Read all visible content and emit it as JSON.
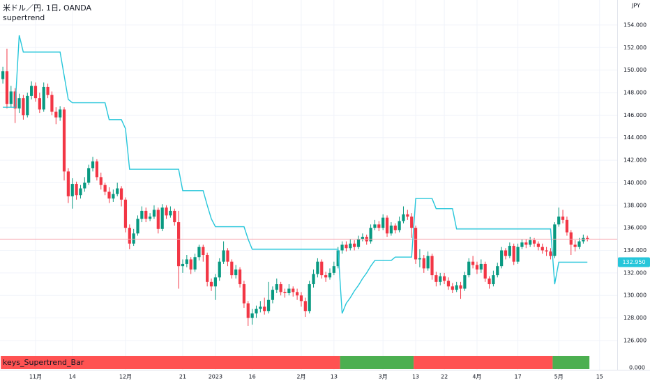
{
  "chart_data": {
    "type": "candlestick",
    "title": "米ドル／円, 1日, OANDA",
    "currency": "JPY",
    "up_color": "#089981",
    "down_color": "#f23645",
    "open": [
      149.2,
      149.9,
      147.0,
      148.1,
      146.6,
      147.5,
      146.0,
      147.7,
      148.6,
      147.5,
      146.5,
      148.5,
      147.8,
      146.3,
      145.8,
      146.5,
      141.0,
      138.8,
      139.9,
      138.9,
      139.5,
      140.0,
      141.3,
      141.9,
      140.5,
      139.8,
      139.2,
      138.6,
      139.0,
      139.5,
      138.5,
      136.0,
      134.6,
      135.5,
      136.8,
      137.5,
      136.8,
      137.0,
      137.6,
      135.9,
      137.8,
      137.1,
      137.5,
      136.5,
      132.6,
      132.8,
      133.2,
      132.3,
      133.4,
      134.3,
      133.6,
      131.2,
      130.8,
      131.6,
      133.0,
      134.0,
      133.0,
      131.8,
      132.3,
      131.0,
      129.3,
      128.0,
      128.4,
      128.8,
      129.0,
      128.6,
      129.6,
      130.5,
      131.0,
      130.3,
      130.2,
      130.6,
      130.3,
      130.0,
      129.5,
      128.6,
      131.0,
      131.9,
      133.0,
      131.8,
      131.6,
      132.0,
      132.6,
      134.0,
      134.5,
      134.2,
      134.6,
      134.3,
      135.0,
      135.2,
      134.8,
      136.0,
      136.3,
      136.0,
      136.9,
      135.5,
      136.2,
      135.8,
      136.6,
      137.2,
      137.0,
      136.0,
      133.2,
      133.3,
      132.4,
      133.5,
      131.8,
      131.2,
      131.7,
      131.3,
      130.8,
      130.5,
      130.9,
      130.6,
      131.8,
      133.0,
      132.7,
      132.3,
      132.8,
      131.5,
      131.0,
      131.8,
      132.6,
      134.0,
      133.5,
      134.4,
      133.0,
      134.3,
      134.7,
      134.5,
      134.9,
      134.6,
      134.3,
      134.0,
      133.9,
      133.5,
      136.3,
      137.0,
      136.7,
      135.6,
      134.5,
      134.3,
      134.8,
      135.1
    ],
    "high": [
      150.3,
      151.9,
      148.6,
      148.4,
      147.9,
      147.8,
      148.0,
      149.0,
      148.9,
      148.0,
      148.9,
      148.8,
      148.1,
      146.7,
      146.8,
      146.7,
      141.3,
      140.4,
      140.1,
      139.8,
      140.5,
      141.6,
      142.3,
      142.1,
      140.9,
      140.0,
      139.6,
      139.4,
      140.0,
      139.7,
      138.7,
      136.3,
      135.9,
      137.1,
      137.9,
      137.8,
      137.3,
      138.0,
      137.8,
      138.1,
      138.0,
      137.9,
      137.7,
      137.5,
      133.2,
      133.6,
      133.4,
      133.7,
      134.5,
      134.5,
      133.8,
      131.5,
      131.9,
      133.3,
      134.8,
      134.2,
      133.2,
      132.7,
      132.5,
      131.3,
      129.5,
      128.8,
      129.1,
      129.5,
      129.8,
      131.2,
      130.8,
      131.5,
      131.2,
      130.6,
      131.0,
      130.8,
      130.6,
      130.3,
      129.8,
      131.3,
      132.3,
      133.3,
      133.2,
      132.1,
      132.4,
      133.0,
      134.3,
      134.8,
      134.8,
      135.0,
      134.9,
      135.3,
      135.5,
      135.4,
      136.3,
      136.7,
      136.6,
      137.2,
      137.1,
      136.5,
      136.4,
      137.0,
      137.9,
      137.6,
      137.3,
      136.2,
      134.1,
      133.6,
      133.9,
      133.7,
      132.1,
      132.0,
      132.0,
      131.6,
      131.1,
      131.2,
      131.2,
      132.1,
      133.3,
      133.5,
      133.0,
      133.2,
      133.0,
      131.7,
      132.2,
      132.9,
      134.3,
      134.2,
      134.7,
      134.6,
      134.6,
      135.0,
      135.0,
      135.2,
      135.1,
      134.8,
      134.6,
      134.3,
      134.2,
      136.5,
      137.8,
      137.6,
      137.0,
      135.8,
      134.9,
      135.1,
      135.4,
      135.3
    ],
    "low": [
      148.8,
      146.6,
      146.7,
      145.3,
      146.2,
      145.6,
      145.8,
      147.4,
      147.2,
      146.2,
      146.3,
      147.5,
      146.0,
      145.2,
      145.5,
      140.2,
      138.2,
      137.7,
      138.5,
      138.6,
      139.2,
      139.8,
      141.0,
      140.2,
      139.4,
      138.9,
      138.2,
      138.3,
      138.8,
      137.9,
      135.6,
      134.1,
      134.4,
      135.3,
      136.5,
      136.5,
      136.6,
      136.8,
      135.5,
      135.7,
      136.8,
      136.9,
      136.2,
      130.6,
      132.0,
      132.5,
      131.9,
      132.1,
      133.1,
      133.0,
      130.8,
      130.4,
      129.6,
      131.3,
      132.8,
      132.6,
      131.5,
      131.5,
      130.7,
      128.9,
      127.3,
      127.4,
      128.0,
      128.5,
      128.3,
      128.4,
      129.3,
      130.2,
      130.0,
      129.8,
      130.0,
      129.9,
      129.6,
      129.0,
      128.1,
      128.4,
      130.7,
      131.6,
      131.5,
      131.2,
      131.4,
      131.8,
      132.4,
      133.7,
      133.9,
      134.0,
      134.0,
      134.1,
      134.8,
      134.5,
      134.6,
      135.8,
      135.7,
      135.8,
      135.2,
      135.3,
      135.5,
      135.6,
      136.4,
      136.7,
      135.1,
      132.8,
      132.5,
      132.0,
      132.2,
      131.4,
      130.8,
      130.9,
      131.0,
      130.5,
      130.2,
      130.3,
      129.7,
      130.4,
      131.6,
      132.4,
      131.9,
      132.0,
      131.2,
      130.6,
      130.8,
      131.6,
      132.4,
      133.2,
      133.3,
      132.7,
      132.8,
      134.1,
      134.2,
      134.3,
      134.3,
      134.0,
      133.7,
      133.5,
      133.2,
      133.3,
      136.1,
      136.4,
      135.3,
      133.6,
      133.9,
      134.1,
      134.6,
      134.8
    ],
    "close": [
      149.9,
      147.0,
      148.1,
      146.6,
      147.5,
      146.0,
      147.7,
      148.6,
      147.5,
      146.5,
      148.5,
      147.8,
      146.3,
      145.8,
      146.5,
      141.0,
      138.8,
      139.9,
      138.9,
      139.5,
      140.0,
      141.3,
      141.9,
      140.5,
      139.8,
      139.2,
      138.6,
      139.0,
      139.5,
      138.5,
      136.0,
      134.6,
      135.5,
      136.8,
      137.5,
      136.8,
      137.0,
      137.6,
      135.9,
      137.8,
      137.1,
      137.5,
      136.5,
      132.6,
      132.8,
      133.2,
      132.3,
      133.4,
      134.3,
      133.6,
      131.2,
      130.8,
      131.6,
      133.0,
      134.0,
      133.0,
      131.8,
      132.3,
      131.0,
      129.3,
      128.0,
      128.4,
      128.8,
      129.0,
      128.6,
      129.6,
      130.5,
      131.0,
      130.3,
      130.2,
      130.6,
      130.3,
      130.0,
      129.5,
      128.6,
      131.0,
      131.9,
      133.0,
      131.8,
      131.6,
      132.0,
      132.6,
      134.0,
      134.5,
      134.2,
      134.6,
      134.3,
      135.0,
      135.2,
      134.8,
      136.0,
      136.3,
      136.0,
      136.9,
      135.5,
      136.2,
      135.8,
      136.6,
      137.2,
      137.0,
      136.0,
      133.2,
      133.3,
      132.4,
      133.5,
      131.8,
      131.2,
      131.7,
      131.3,
      130.8,
      130.5,
      130.9,
      130.6,
      131.8,
      133.0,
      132.7,
      132.3,
      132.8,
      131.5,
      131.0,
      131.8,
      132.6,
      134.0,
      133.5,
      134.4,
      133.0,
      134.3,
      134.7,
      134.5,
      134.9,
      134.6,
      134.3,
      134.0,
      133.9,
      133.5,
      136.3,
      137.0,
      136.7,
      135.6,
      134.5,
      134.3,
      134.8,
      135.1,
      135.0
    ],
    "overlay": {
      "name": "supertrend",
      "color": "#26c6da",
      "values": [
        146.7,
        146.7,
        146.7,
        146.7,
        153.1,
        151.6,
        151.6,
        151.6,
        151.6,
        151.6,
        151.6,
        151.6,
        151.6,
        151.6,
        151.6,
        149.5,
        147.4,
        147.1,
        147.1,
        147.1,
        147.1,
        147.1,
        147.1,
        147.1,
        147.1,
        147.1,
        145.6,
        145.6,
        145.6,
        145.6,
        144.8,
        141.2,
        141.2,
        141.2,
        141.2,
        141.2,
        141.2,
        141.2,
        141.2,
        141.2,
        141.2,
        141.2,
        141.2,
        141.2,
        139.3,
        139.3,
        139.3,
        139.3,
        139.3,
        139.3,
        138.0,
        136.8,
        136.1,
        136.1,
        136.1,
        136.1,
        136.1,
        136.1,
        136.1,
        136.1,
        135.0,
        134.1,
        134.1,
        134.1,
        134.1,
        134.1,
        134.1,
        134.1,
        134.1,
        134.1,
        134.1,
        134.1,
        134.1,
        134.1,
        134.1,
        134.1,
        134.1,
        134.1,
        134.1,
        134.1,
        134.1,
        134.1,
        134.1,
        128.4,
        129.3,
        129.8,
        130.4,
        130.9,
        131.5,
        132.0,
        132.6,
        133.1,
        133.1,
        133.1,
        133.1,
        133.1,
        133.4,
        133.4,
        133.4,
        133.4,
        133.4,
        138.6,
        138.6,
        138.6,
        138.6,
        138.6,
        137.7,
        137.7,
        137.7,
        137.7,
        137.7,
        135.9,
        135.9,
        135.9,
        135.9,
        135.9,
        135.9,
        135.9,
        135.9,
        135.9,
        135.9,
        135.9,
        135.9,
        135.9,
        135.9,
        135.9,
        135.9,
        135.9,
        135.9,
        135.9,
        135.9,
        135.9,
        135.9,
        135.9,
        135.9,
        131.0,
        132.95,
        132.95,
        132.95,
        132.95,
        132.95,
        132.95,
        132.95,
        132.95
      ],
      "price_label": {
        "value": 132.95,
        "label": "132.950"
      }
    },
    "ylim": [
      124.7,
      156.22
    ],
    "yticks": [
      {
        "value": 126,
        "label": "126.000"
      },
      {
        "value": 128,
        "label": "128.000"
      },
      {
        "value": 130,
        "label": "130.000"
      },
      {
        "value": 132,
        "label": "132.000"
      },
      {
        "value": 134,
        "label": "134.000"
      },
      {
        "value": 136,
        "label": "136.000"
      },
      {
        "value": 138,
        "label": "138.000"
      },
      {
        "value": 140,
        "label": "140.000"
      },
      {
        "value": 142,
        "label": "142.000"
      },
      {
        "value": 144,
        "label": "144.000"
      },
      {
        "value": 146,
        "label": "146.000"
      },
      {
        "value": 148,
        "label": "148.000"
      },
      {
        "value": 150,
        "label": "150.000"
      },
      {
        "value": 152,
        "label": "152.000"
      },
      {
        "value": 154,
        "label": "154.000"
      }
    ],
    "xlim": [
      -0.7,
      150.3
    ],
    "xticks": [
      {
        "value": 8,
        "label": "11月"
      },
      {
        "value": 17,
        "label": "14"
      },
      {
        "value": 30,
        "label": "12月"
      },
      {
        "value": 44,
        "label": "21"
      },
      {
        "value": 52,
        "label": "2023"
      },
      {
        "value": 61,
        "label": "16"
      },
      {
        "value": 73,
        "label": "2月"
      },
      {
        "value": 81,
        "label": "13"
      },
      {
        "value": 93,
        "label": "3月"
      },
      {
        "value": 101,
        "label": "13"
      },
      {
        "value": 108,
        "label": "22"
      },
      {
        "value": 116,
        "label": "4月"
      },
      {
        "value": 126,
        "label": "17"
      },
      {
        "value": 136,
        "label": "5月"
      },
      {
        "value": 146,
        "label": "15"
      }
    ],
    "grid": true,
    "panel": {
      "title": "keys_Supertrend_Bar",
      "segments": [
        {
          "start": 0,
          "end": 82,
          "color": "#ff5252"
        },
        {
          "start": 83,
          "end": 100,
          "color": "#4caf50"
        },
        {
          "start": 101,
          "end": 134,
          "color": "#ff5252"
        },
        {
          "start": 135,
          "end": 143,
          "color": "#4caf50"
        }
      ],
      "yticks": [
        {
          "value": 0,
          "label": "0.000"
        }
      ]
    }
  }
}
